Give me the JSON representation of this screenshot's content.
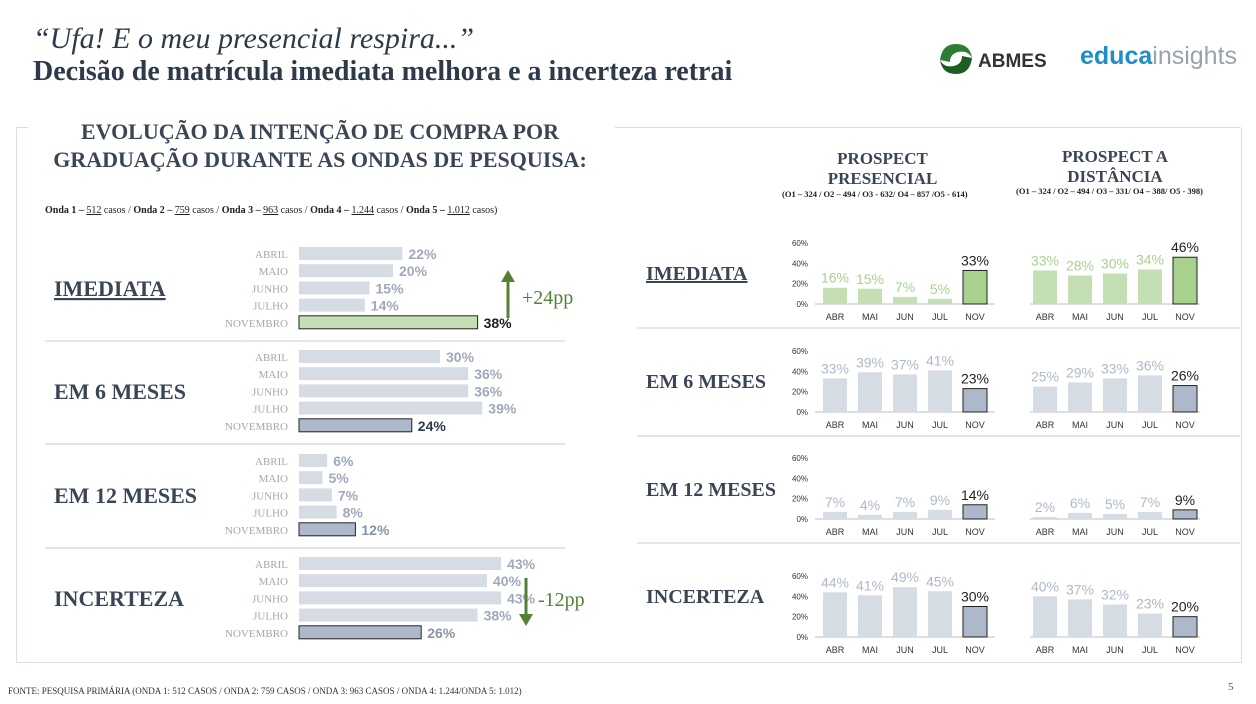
{
  "header": {
    "title_italic": "“Ufa! E o meu presencial respira...”",
    "title_bold": "Decisão de matrícula imediata melhora e a incerteza retrai"
  },
  "logos": {
    "abmes": "ABMES",
    "educa_bold": "educa",
    "educa_light": "insights"
  },
  "left_panel": {
    "title": "EVOLUÇÃO DA INTENÇÃO DE COMPRA POR GRADUAÇÃO DURANTE AS ONDAS DE PESQUISA:",
    "subtitle": [
      {
        "b": "Onda 1 – ",
        "u": "512",
        "t": " casos / "
      },
      {
        "b": "Onda 2 – ",
        "u": "759",
        "t": " casos / "
      },
      {
        "b": "Onda 3 – ",
        "u": "963",
        "t": " casos / "
      },
      {
        "b": "Onda 4 – ",
        "u": "1.244",
        "t": " casos / "
      },
      {
        "b": "Onda 5 – ",
        "u": "1.012",
        "t": " casos)"
      }
    ]
  },
  "right_panel": {
    "col1_title": "PROSPECT PRESENCIAL",
    "col1_sub": "(O1 – 324 / O2 – 494 / O3 - 632/ O4 – 857 /O5 - 614)",
    "col2_title": "PROSPECT A DISTÂNCIA",
    "col2_sub": "(O1 – 324 / O2 – 494 / O3 – 331/ O4 – 388/ O5 - 398)"
  },
  "chart_data": [
    {
      "type": "bar",
      "orientation": "horizontal",
      "title": "EVOLUÇÃO DA INTENÇÃO DE COMPRA POR GRADUAÇÃO DURANTE AS ONDAS DE PESQUISA:",
      "categories": [
        "ABRIL",
        "MAIO",
        "JUNHO",
        "JULHO",
        "NOVEMBRO"
      ],
      "groups": [
        {
          "name": "IMEDIATA",
          "values": [
            22,
            20,
            15,
            14,
            38
          ],
          "labels": [
            "22%",
            "20%",
            "15%",
            "14%",
            "38%"
          ],
          "underline": true,
          "change": "+24pp",
          "change_dir": "up",
          "highlight_color": "#c5dfb4"
        },
        {
          "name": "EM 6 MESES",
          "values": [
            30,
            36,
            36,
            39,
            24
          ],
          "labels": [
            "30%",
            "36%",
            "36%",
            "39%",
            "24%"
          ],
          "highlight_color": "#adb9ca"
        },
        {
          "name": "EM 12 MESES",
          "values": [
            6,
            5,
            7,
            8,
            12
          ],
          "labels": [
            "6%",
            "5%",
            "7%",
            "8%",
            "12%"
          ],
          "highlight_color": "#adb9ca"
        },
        {
          "name": "INCERTEZA",
          "values": [
            43,
            40,
            43,
            38,
            26
          ],
          "labels": [
            "43%",
            "40%",
            "43%",
            "38%",
            "26%"
          ],
          "change": "-12pp",
          "change_dir": "down",
          "highlight_color": "#adb9ca"
        }
      ],
      "base_color": "#d6dce4"
    },
    {
      "type": "bar",
      "title": "PROSPECT PRESENCIAL",
      "categories": [
        "ABR",
        "MAI",
        "JUN",
        "JUL",
        "NOV"
      ],
      "ylim": [
        0,
        60
      ],
      "yticks": [
        "0%",
        "20%",
        "40%",
        "60%"
      ],
      "groups": [
        {
          "name": "IMEDIATA",
          "values": [
            16,
            15,
            7,
            5,
            33
          ],
          "labels": [
            "16%",
            "15%",
            "7%",
            "5%",
            "33%"
          ]
        },
        {
          "name": "EM 6 MESES",
          "values": [
            33,
            39,
            37,
            41,
            23
          ],
          "labels": [
            "33%",
            "39%",
            "37%",
            "41%",
            "23%"
          ]
        },
        {
          "name": "EM 12 MESES",
          "values": [
            7,
            4,
            7,
            9,
            14
          ],
          "labels": [
            "7%",
            "4%",
            "7%",
            "9%",
            "14%"
          ]
        },
        {
          "name": "INCERTEZA",
          "values": [
            44,
            41,
            49,
            45,
            30
          ],
          "labels": [
            "44%",
            "41%",
            "49%",
            "45%",
            "30%"
          ]
        }
      ]
    },
    {
      "type": "bar",
      "title": "PROSPECT A DISTÂNCIA",
      "categories": [
        "ABR",
        "MAI",
        "JUN",
        "JUL",
        "NOV"
      ],
      "ylim": [
        0,
        60
      ],
      "yticks": [
        "0%",
        "20%",
        "40%",
        "60%"
      ],
      "groups": [
        {
          "name": "IMEDIATA",
          "values": [
            33,
            28,
            30,
            34,
            46
          ],
          "labels": [
            "33%",
            "28%",
            "30%",
            "34%",
            "46%"
          ]
        },
        {
          "name": "EM 6 MESES",
          "values": [
            25,
            29,
            33,
            36,
            26
          ],
          "labels": [
            "25%",
            "29%",
            "33%",
            "36%",
            "26%"
          ]
        },
        {
          "name": "EM 12 MESES",
          "values": [
            2,
            6,
            5,
            7,
            9
          ],
          "labels": [
            "2%",
            "6%",
            "5%",
            "7%",
            "9%"
          ]
        },
        {
          "name": "INCERTEZA",
          "values": [
            40,
            37,
            32,
            23,
            20
          ],
          "labels": [
            "40%",
            "37%",
            "32%",
            "23%",
            "20%"
          ]
        }
      ]
    }
  ],
  "colors": {
    "green_light": "#c5dfb4",
    "green_label": "#a9d18e",
    "green_nov": "#a9d18e",
    "gray_bar": "#d6dce4",
    "gray_label": "#adb9ca",
    "blue_nov": "#adb9ca",
    "dark_text": "#2c3a4a",
    "arrow_green": "#548235"
  },
  "footer": {
    "source": "FONTE: PESQUISA PRIMÁRIA (ONDA 1: 512 CASOS / ONDA 2: 759 CASOS / ONDA 3: 963 CASOS / ONDA 4: 1.244/ONDA 5: 1.012)",
    "page": "5"
  }
}
